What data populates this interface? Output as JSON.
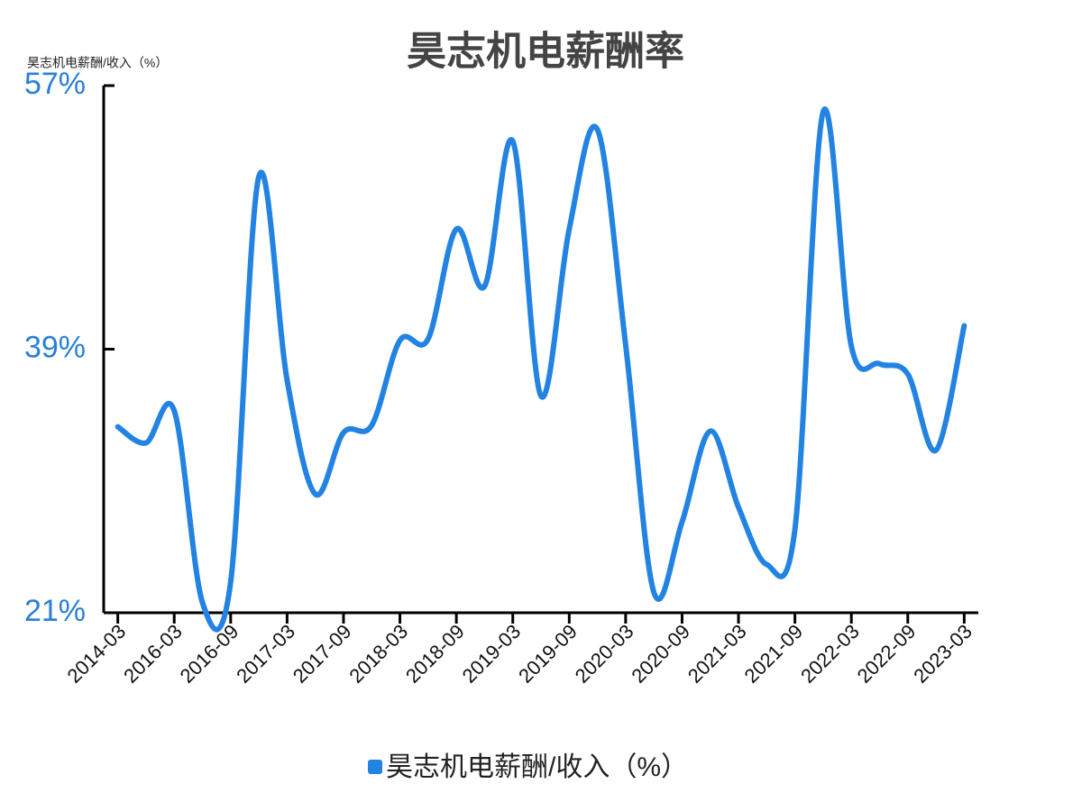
{
  "chart_data": {
    "type": "line",
    "title": "昊志机电薪酬率",
    "y_axis_label": "昊志机电薪酬/收入（%）",
    "categories": [
      "2014-03",
      null,
      "2016-03",
      null,
      "2016-09",
      null,
      "2017-03",
      null,
      "2017-09",
      null,
      "2018-03",
      null,
      "2018-09",
      null,
      "2019-03",
      null,
      "2019-09",
      null,
      "2020-03",
      null,
      "2020-09",
      null,
      "2021-03",
      null,
      "2021-09",
      null,
      "2022-03",
      null,
      "2022-09",
      null,
      "2023-03"
    ],
    "series": [
      {
        "name": "昊志机电薪酬/收入（%）",
        "color": "#2283e2",
        "values": [
          33.7,
          32.6,
          34.8,
          21.7,
          23.1,
          50.8,
          36.9,
          29.1,
          33.3,
          33.8,
          39.6,
          39.7,
          47.2,
          43.3,
          53.2,
          35.8,
          47.2,
          54.0,
          39.3,
          22.4,
          27.2,
          33.4,
          28.2,
          24.3,
          26.7,
          55.2,
          39.2,
          38.0,
          37.3,
          32.1,
          40.6
        ]
      }
    ],
    "ylim": [
      21,
      57
    ],
    "yticks": [
      {
        "value": 21,
        "label": "21%"
      },
      {
        "value": 39,
        "label": "39%"
      },
      {
        "value": 57,
        "label": "57%"
      }
    ],
    "grid": false,
    "smooth": true,
    "legend": "bottom"
  }
}
